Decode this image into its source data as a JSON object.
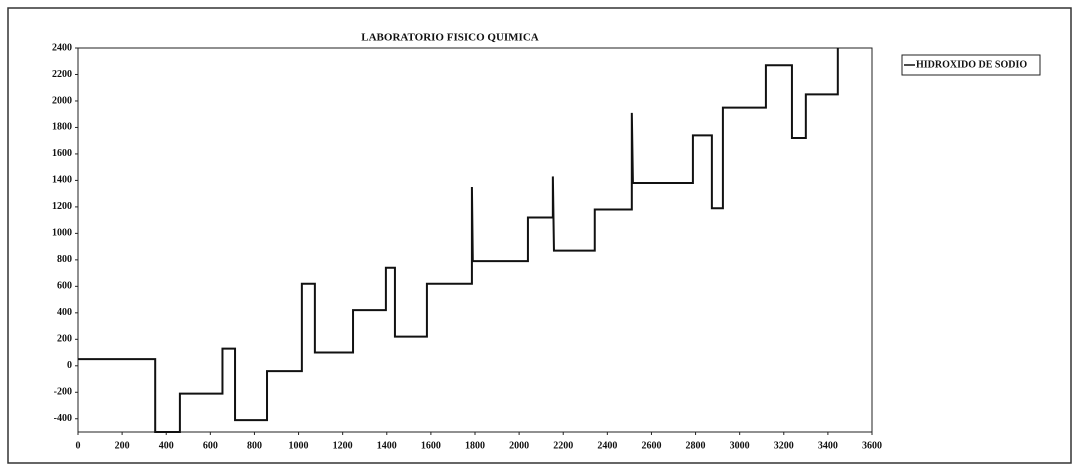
{
  "chart_data": {
    "type": "line",
    "title": "LABORATORIO FISICO QUIMICA",
    "x": [
      0,
      350,
      350,
      462,
      462,
      655,
      655,
      712,
      712,
      857,
      857,
      1015,
      1015,
      1074,
      1074,
      1247,
      1247,
      1396,
      1396,
      1437,
      1437,
      1582,
      1582,
      1786,
      1786,
      1790,
      2040,
      2040,
      2153,
      2153,
      2158,
      2343,
      2343,
      2511,
      2511,
      2516,
      2788,
      2788,
      2874,
      2874,
      2924,
      2924,
      3119,
      3119,
      3237,
      3237,
      3300,
      3300,
      3445,
      3445
    ],
    "series": [
      {
        "name": "HIDROXIDO DE SODIO",
        "color": "#111111",
        "values": [
          50,
          50,
          -500,
          -500,
          -210,
          -210,
          130,
          130,
          -410,
          -410,
          -40,
          -40,
          620,
          620,
          100,
          100,
          420,
          420,
          740,
          740,
          220,
          220,
          620,
          620,
          1350,
          790,
          790,
          1120,
          1120,
          1430,
          870,
          870,
          1180,
          1180,
          1910,
          1380,
          1380,
          1740,
          1740,
          1190,
          1190,
          1950,
          1950,
          2270,
          2270,
          1720,
          1720,
          2050,
          2050,
          2400
        ]
      }
    ],
    "xlim": [
      0,
      3600
    ],
    "xticks": [
      0,
      200,
      400,
      600,
      800,
      1000,
      1200,
      1400,
      1600,
      1800,
      2000,
      2200,
      2400,
      2600,
      2800,
      3000,
      3200,
      3400,
      3600
    ],
    "ylim": [
      -500,
      2400
    ],
    "yticks": [
      -400,
      -200,
      0,
      200,
      400,
      600,
      800,
      1000,
      1200,
      1400,
      1600,
      1800,
      2000,
      2200,
      2400
    ],
    "legend": "top-right"
  }
}
